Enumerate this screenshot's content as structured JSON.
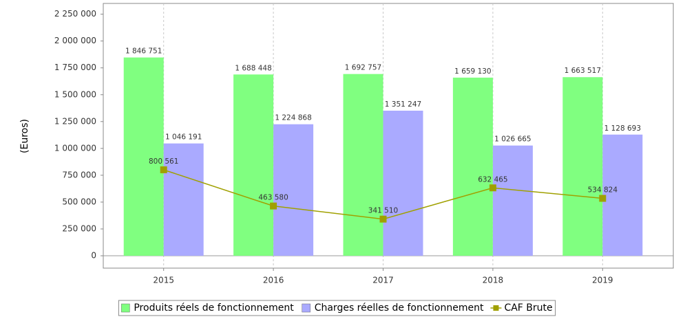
{
  "chart_data": {
    "type": "bar_line",
    "y_label": "(Euros)",
    "categories": [
      "2015",
      "2016",
      "2017",
      "2018",
      "2019"
    ],
    "series": [
      {
        "name": "Produits réels de fonctionnement",
        "color": "#80ff80",
        "kind": "bar",
        "values": [
          1846751,
          1688448,
          1692757,
          1659130,
          1663517
        ],
        "value_labels": [
          "1 846 751",
          "1 688 448",
          "1 692 757",
          "1 659 130",
          "1 663 517"
        ]
      },
      {
        "name": "Charges réelles de fonctionnement",
        "color": "#aaaaff",
        "kind": "bar",
        "values": [
          1046191,
          1224868,
          1351247,
          1026665,
          1128693
        ],
        "value_labels": [
          "1 046 191",
          "1 224 868",
          "1 351 247",
          "1 026 665",
          "1 128 693"
        ]
      },
      {
        "name": "CAF Brute",
        "color": "#a0a000",
        "kind": "line",
        "values": [
          800561,
          463580,
          341510,
          632465,
          534824
        ],
        "value_labels": [
          "800 561",
          "463 580",
          "341 510",
          "632 465",
          "534 824"
        ]
      }
    ],
    "ylim": [
      -115000,
      2350000
    ],
    "yticks": [
      0,
      {
        "value": 250000,
        "label": "250 000"
      },
      {
        "value": 500000,
        "label": "500 000"
      },
      {
        "value": 750000,
        "label": "750 000"
      },
      {
        "value": 1000000,
        "label": "1 000 000"
      },
      {
        "value": 1250000,
        "label": "1 250 000"
      },
      {
        "value": 1500000,
        "label": "1 500 000"
      },
      {
        "value": 1750000,
        "label": "1 750 000"
      },
      {
        "value": 2000000,
        "label": "2 000 000"
      },
      {
        "value": 2250000,
        "label": "2 250 000"
      }
    ],
    "grid": true,
    "legend": "bottom"
  }
}
